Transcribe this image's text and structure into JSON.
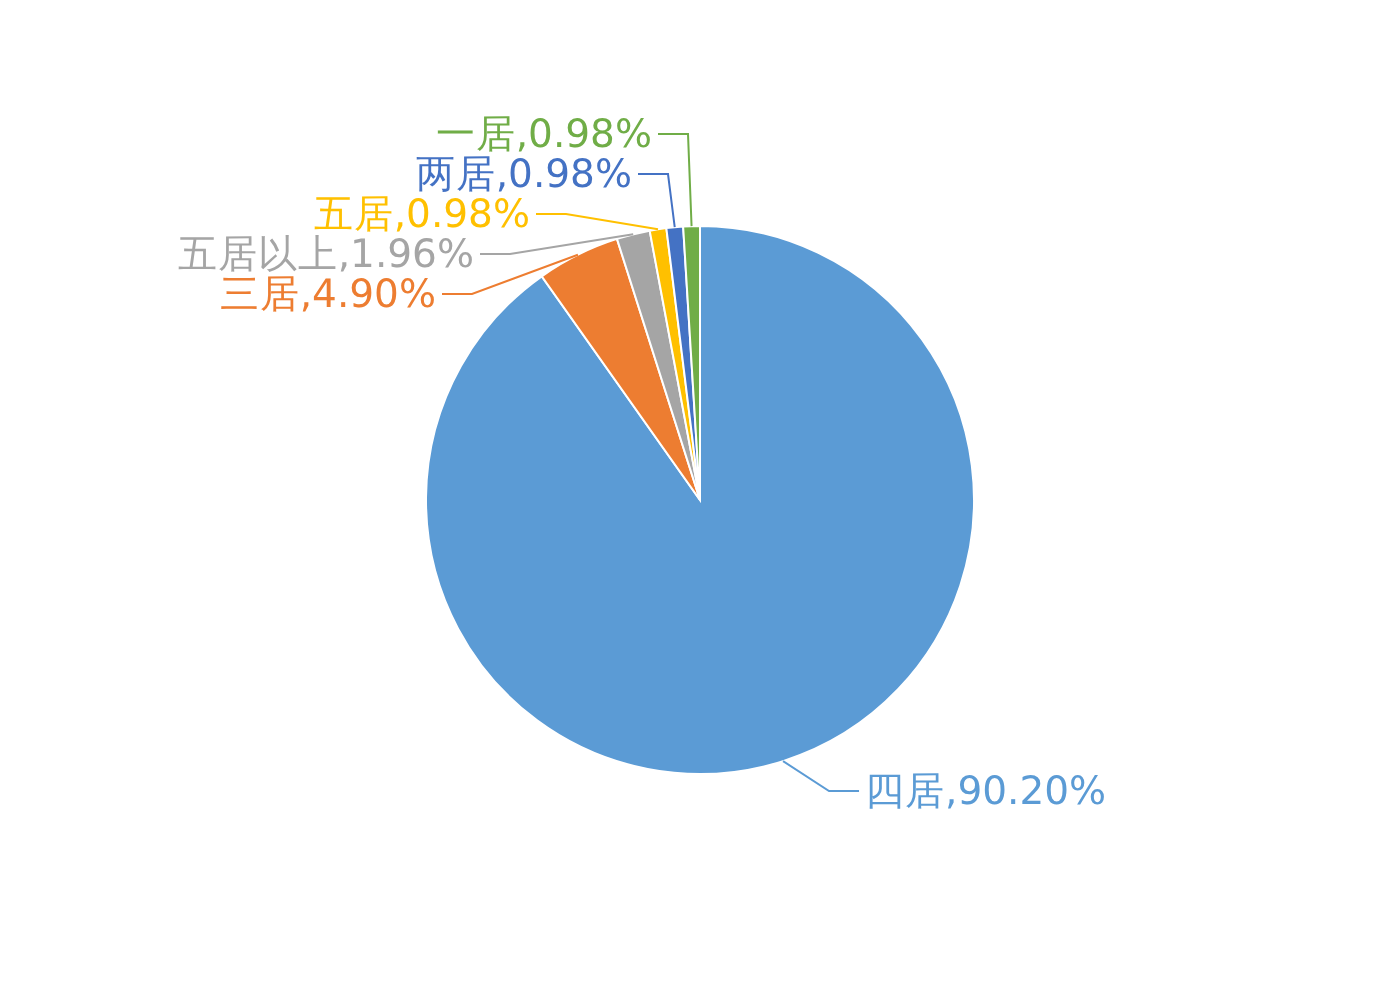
{
  "chart_data": {
    "type": "pie",
    "categories": [
      "四居",
      "三居",
      "五居以上",
      "五居",
      "两居",
      "一居"
    ],
    "values": [
      90.2,
      4.9,
      1.96,
      0.98,
      0.98,
      0.98
    ],
    "colors": [
      "#5b9bd5",
      "#ed7d31",
      "#a5a5a5",
      "#ffc000",
      "#4472c4",
      "#70ad47"
    ],
    "value_labels": [
      "90.20%",
      "4.90%",
      "1.96%",
      "0.98%",
      "0.98%",
      "0.98%"
    ]
  }
}
